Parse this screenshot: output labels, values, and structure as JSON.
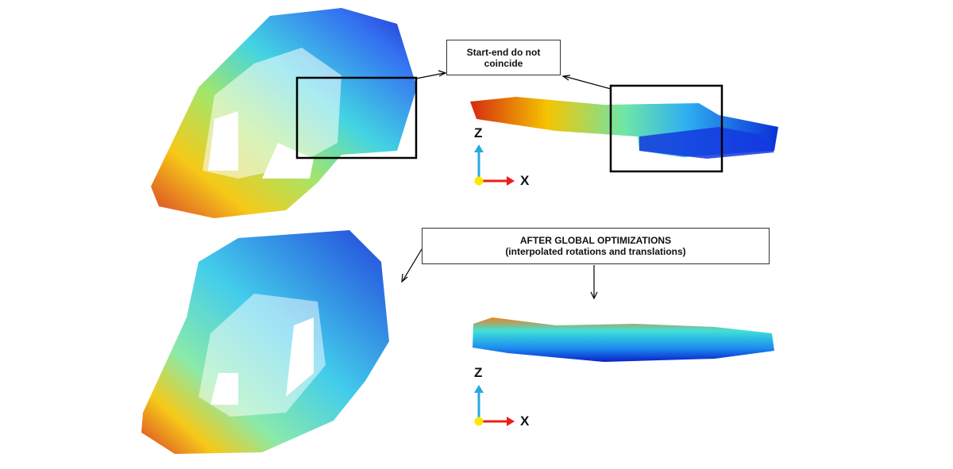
{
  "callouts": {
    "start_end": "Start-end do not coincide",
    "after_title": "AFTER GLOBAL OPTIMIZATIONS",
    "after_subtitle": "(interpolated rotations and translations)"
  },
  "axes_top": {
    "z": "Z",
    "x": "X"
  },
  "axes_bottom": {
    "z": "Z",
    "x": "X"
  }
}
